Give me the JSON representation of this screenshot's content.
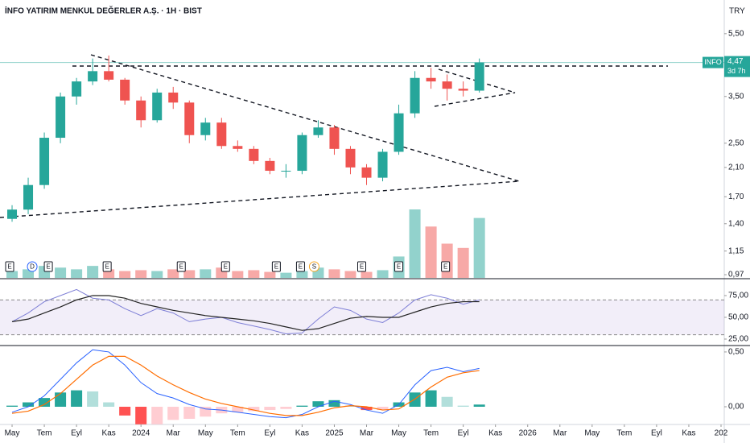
{
  "chart_data": {
    "type": "candlestick",
    "title": "İNFO YATIRIM MENKUL DEĞERLER A.Ş. · 1H · BIST",
    "currency": "TRY",
    "log": true,
    "x": [
      0,
      1,
      2,
      3,
      4,
      5,
      6,
      7,
      8,
      9,
      10,
      11,
      12,
      13,
      14,
      15,
      16,
      17,
      18,
      19,
      20,
      21,
      22,
      23,
      24,
      25,
      26,
      27,
      28,
      29
    ],
    "xlim": [
      -0.75,
      44.2
    ],
    "xticks": [
      {
        "value": 0,
        "label": "May"
      },
      {
        "value": 2,
        "label": "Tem"
      },
      {
        "value": 4,
        "label": "Eyl"
      },
      {
        "value": 6,
        "label": "Kas"
      },
      {
        "value": 8,
        "label": "2024"
      },
      {
        "value": 10,
        "label": "Mar"
      },
      {
        "value": 12,
        "label": "May"
      },
      {
        "value": 14,
        "label": "Tem"
      },
      {
        "value": 16,
        "label": "Eyl"
      },
      {
        "value": 18,
        "label": "Kas"
      },
      {
        "value": 20,
        "label": "2025"
      },
      {
        "value": 22,
        "label": "Mar"
      },
      {
        "value": 24,
        "label": "May"
      },
      {
        "value": 26,
        "label": "Tem"
      },
      {
        "value": 28,
        "label": "Eyl"
      },
      {
        "value": 30,
        "label": "Kas"
      },
      {
        "value": 32,
        "label": "2026"
      },
      {
        "value": 34,
        "label": "Mar"
      },
      {
        "value": 36,
        "label": "May"
      },
      {
        "value": 38,
        "label": "Tem"
      },
      {
        "value": 40,
        "label": "Eyl"
      },
      {
        "value": 42,
        "label": "Kas"
      },
      {
        "value": 44,
        "label": "202"
      }
    ],
    "open": [
      1.45,
      1.55,
      1.85,
      2.6,
      3.5,
      3.9,
      4.2,
      3.95,
      3.4,
      2.95,
      3.6,
      3.35,
      2.65,
      2.9,
      2.45,
      2.4,
      2.2,
      2.05,
      2.05,
      2.65,
      2.8,
      2.4,
      2.1,
      1.95,
      2.35,
      3.1,
      4.0,
      3.9,
      3.7,
      3.65
    ],
    "high": [
      1.6,
      1.95,
      2.7,
      3.6,
      4.0,
      4.6,
      4.7,
      4.0,
      3.5,
      3.7,
      3.75,
      3.4,
      3.0,
      3.0,
      2.55,
      2.45,
      2.25,
      2.15,
      2.7,
      2.95,
      2.85,
      2.45,
      2.15,
      2.4,
      3.3,
      4.2,
      4.3,
      4.1,
      3.9,
      4.6
    ],
    "low": [
      1.42,
      1.5,
      1.8,
      2.5,
      3.3,
      3.8,
      3.9,
      3.3,
      2.8,
      2.9,
      3.2,
      2.5,
      2.55,
      2.4,
      2.35,
      2.15,
      2.0,
      1.95,
      2.0,
      2.6,
      2.3,
      2.0,
      1.85,
      1.9,
      2.3,
      3.0,
      3.7,
      3.4,
      3.5,
      3.6
    ],
    "close": [
      1.55,
      1.85,
      2.6,
      3.5,
      3.9,
      4.2,
      3.95,
      3.4,
      2.95,
      3.6,
      3.35,
      2.65,
      2.9,
      2.45,
      2.4,
      2.2,
      2.05,
      2.05,
      2.65,
      2.8,
      2.4,
      2.1,
      1.95,
      2.35,
      3.1,
      4.0,
      3.9,
      3.7,
      3.65,
      4.47
    ],
    "up_color": "#26a69a",
    "down_color": "#ef5350",
    "ylim": [
      0.948,
      7.01
    ],
    "yticks": [
      {
        "value": 5.5,
        "label": "5,50"
      },
      {
        "value": 3.5,
        "label": "3,50"
      },
      {
        "value": 2.5,
        "label": "2,50"
      },
      {
        "value": 2.1,
        "label": "2,10"
      },
      {
        "value": 1.7,
        "label": "1,70"
      },
      {
        "value": 1.4,
        "label": "1,40"
      },
      {
        "value": 1.15,
        "label": "1,15"
      },
      {
        "value": 0.97,
        "label": "0,97"
      }
    ],
    "last": {
      "symbol": "INFO",
      "value": 4.47,
      "value_label": "4,47",
      "countdown": "3d 7h"
    },
    "volume": [
      8,
      10,
      14,
      12,
      10,
      14,
      10,
      8,
      9,
      8,
      10,
      9,
      10,
      12,
      8,
      9,
      7,
      6,
      8,
      12,
      10,
      8,
      7,
      9,
      25,
      80,
      60,
      40,
      35,
      70
    ],
    "events": [
      {
        "x": -0.15,
        "label": "E"
      },
      {
        "x": 1.25,
        "label": "D"
      },
      {
        "x": 2.25,
        "label": "E"
      },
      {
        "x": 5.9,
        "label": "E"
      },
      {
        "x": 10.5,
        "label": "E"
      },
      {
        "x": 13.25,
        "label": "E"
      },
      {
        "x": 16.4,
        "label": "E"
      },
      {
        "x": 17.9,
        "label": "E"
      },
      {
        "x": 18.75,
        "label": "S"
      },
      {
        "x": 21.7,
        "label": "E"
      },
      {
        "x": 24.0,
        "label": "E"
      },
      {
        "x": 26.9,
        "label": "E"
      }
    ],
    "rsi": {
      "values": [
        45,
        55,
        68,
        75,
        82,
        72,
        70,
        60,
        52,
        60,
        55,
        45,
        48,
        50,
        44,
        40,
        36,
        31,
        32,
        48,
        62,
        58,
        48,
        44,
        55,
        70,
        76,
        72,
        65,
        70
      ],
      "ma": [
        45,
        48,
        55,
        62,
        70,
        75,
        75,
        72,
        66,
        62,
        58,
        55,
        52,
        50,
        48,
        46,
        43,
        39,
        35,
        37,
        43,
        49,
        51,
        50,
        50,
        56,
        62,
        66,
        68,
        68
      ],
      "color": "#7e7fd6",
      "ma_color": "#222222",
      "bands": [
        30,
        70
      ],
      "ylim": [
        18.5,
        93.5
      ],
      "yticks": [
        {
          "value": 75,
          "label": "75,00"
        },
        {
          "value": 50,
          "label": "50,00"
        },
        {
          "value": 25,
          "label": "25,00"
        }
      ]
    },
    "macd": {
      "macd": [
        -0.05,
        0.0,
        0.1,
        0.25,
        0.4,
        0.52,
        0.5,
        0.38,
        0.22,
        0.12,
        0.08,
        0.02,
        -0.02,
        -0.03,
        -0.05,
        -0.07,
        -0.09,
        -0.1,
        -0.07,
        0.0,
        0.05,
        0.02,
        -0.03,
        -0.06,
        0.02,
        0.2,
        0.33,
        0.36,
        0.32,
        0.35
      ],
      "signal": [
        -0.06,
        -0.04,
        0.02,
        0.12,
        0.25,
        0.38,
        0.46,
        0.46,
        0.38,
        0.28,
        0.2,
        0.13,
        0.07,
        0.03,
        0.0,
        -0.03,
        -0.06,
        -0.08,
        -0.08,
        -0.05,
        -0.01,
        0.01,
        0.0,
        -0.03,
        -0.02,
        0.07,
        0.18,
        0.27,
        0.31,
        0.33
      ],
      "histogram": [
        0.01,
        0.04,
        0.08,
        0.13,
        0.15,
        0.14,
        0.04,
        -0.08,
        -0.16,
        -0.16,
        -0.12,
        -0.11,
        -0.09,
        -0.06,
        -0.05,
        -0.04,
        -0.03,
        -0.02,
        0.01,
        0.05,
        0.06,
        0.01,
        -0.03,
        -0.03,
        0.04,
        0.13,
        0.15,
        0.09,
        0.01,
        0.02
      ],
      "macd_color": "#2962ff",
      "signal_color": "#ff6d00",
      "ylim": [
        -0.147,
        0.551
      ],
      "yticks": [
        {
          "value": 0.5,
          "label": "0,50"
        },
        {
          "value": 0,
          "label": "0,00"
        }
      ]
    }
  }
}
